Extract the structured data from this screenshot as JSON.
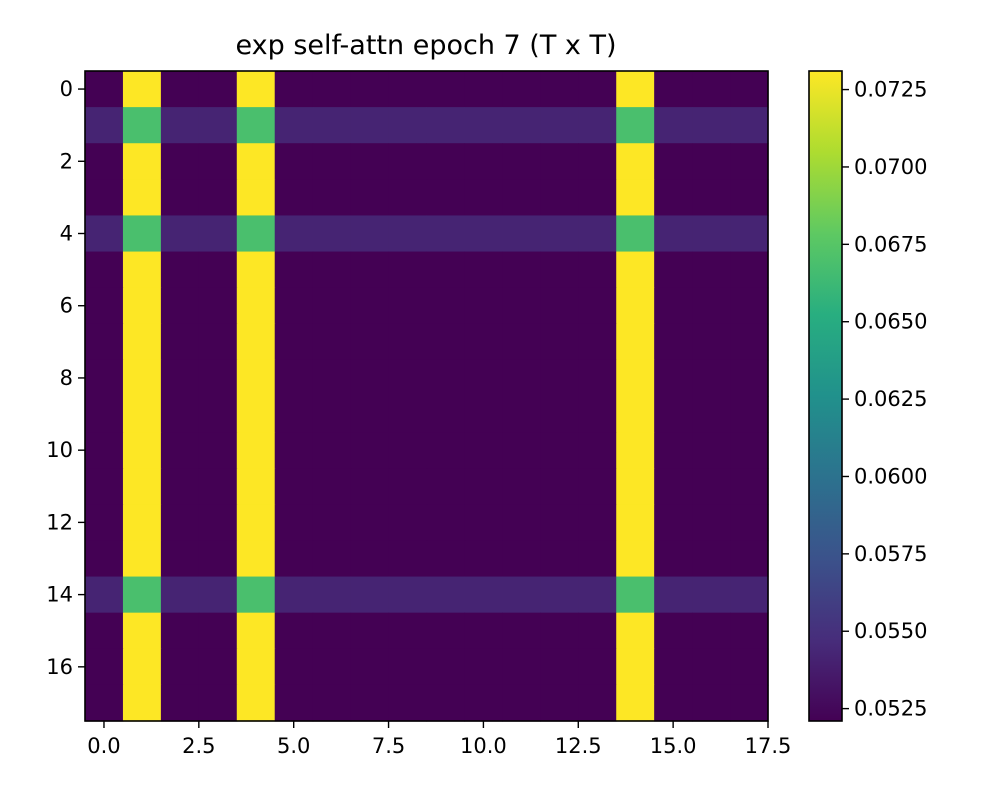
{
  "chart_data": {
    "type": "heatmap",
    "title": "exp self-attn epoch 7 (T x T)",
    "xlabel": "",
    "ylabel": "",
    "size": 18,
    "xlim": [
      -0.5,
      17.5
    ],
    "ylim": [
      17.5,
      -0.5
    ],
    "x_ticks": [
      "0.0",
      "2.5",
      "5.0",
      "7.5",
      "10.0",
      "12.5",
      "15.0",
      "17.5"
    ],
    "x_tick_values": [
      0,
      2.5,
      5,
      7.5,
      10,
      12.5,
      15,
      17.5
    ],
    "y_ticks": [
      "0",
      "2",
      "4",
      "6",
      "8",
      "10",
      "12",
      "14",
      "16"
    ],
    "y_tick_values": [
      0,
      2,
      4,
      6,
      8,
      10,
      12,
      14,
      16
    ],
    "colormap": "viridis",
    "colorbar": {
      "min": 0.0521,
      "max": 0.0731,
      "ticks": [
        "0.0525",
        "0.0550",
        "0.0575",
        "0.0600",
        "0.0625",
        "0.0650",
        "0.0675",
        "0.0700",
        "0.0725"
      ],
      "tick_values": [
        0.0525,
        0.055,
        0.0575,
        0.06,
        0.0625,
        0.065,
        0.0675,
        0.07,
        0.0725
      ]
    },
    "values": [
      [
        0.0521,
        0.0731,
        0.0521,
        0.0521,
        0.0731,
        0.0521,
        0.0521,
        0.0521,
        0.0521,
        0.0521,
        0.0521,
        0.0521,
        0.0521,
        0.0521,
        0.0731,
        0.0521,
        0.0521,
        0.0521
      ],
      [
        0.0542,
        0.0669,
        0.0542,
        0.0542,
        0.0669,
        0.0542,
        0.0542,
        0.0542,
        0.0542,
        0.0542,
        0.0542,
        0.0542,
        0.0542,
        0.0542,
        0.0669,
        0.0542,
        0.0542,
        0.0542
      ],
      [
        0.0521,
        0.0731,
        0.0521,
        0.0521,
        0.0731,
        0.0521,
        0.0521,
        0.0521,
        0.0521,
        0.0521,
        0.0521,
        0.0521,
        0.0521,
        0.0521,
        0.0731,
        0.0521,
        0.0521,
        0.0521
      ],
      [
        0.0521,
        0.0731,
        0.0521,
        0.0521,
        0.0731,
        0.0521,
        0.0521,
        0.0521,
        0.0521,
        0.0521,
        0.0521,
        0.0521,
        0.0521,
        0.0521,
        0.0731,
        0.0521,
        0.0521,
        0.0521
      ],
      [
        0.0542,
        0.0669,
        0.0542,
        0.0542,
        0.0669,
        0.0542,
        0.0542,
        0.0542,
        0.0542,
        0.0542,
        0.0542,
        0.0542,
        0.0542,
        0.0542,
        0.0669,
        0.0542,
        0.0542,
        0.0542
      ],
      [
        0.0521,
        0.0731,
        0.0521,
        0.0521,
        0.0731,
        0.0521,
        0.0521,
        0.0521,
        0.0521,
        0.0521,
        0.0521,
        0.0521,
        0.0521,
        0.0521,
        0.0731,
        0.0521,
        0.0521,
        0.0521
      ],
      [
        0.0521,
        0.0731,
        0.0521,
        0.0521,
        0.0731,
        0.0521,
        0.0521,
        0.0521,
        0.0521,
        0.0521,
        0.0521,
        0.0521,
        0.0521,
        0.0521,
        0.0731,
        0.0521,
        0.0521,
        0.0521
      ],
      [
        0.0521,
        0.0731,
        0.0521,
        0.0521,
        0.0731,
        0.0521,
        0.0521,
        0.0521,
        0.0521,
        0.0521,
        0.0521,
        0.0521,
        0.0521,
        0.0521,
        0.0731,
        0.0521,
        0.0521,
        0.0521
      ],
      [
        0.0521,
        0.0731,
        0.0521,
        0.0521,
        0.0731,
        0.0521,
        0.0521,
        0.0521,
        0.0521,
        0.0521,
        0.0521,
        0.0521,
        0.0521,
        0.0521,
        0.0731,
        0.0521,
        0.0521,
        0.0521
      ],
      [
        0.0521,
        0.0731,
        0.0521,
        0.0521,
        0.0731,
        0.0521,
        0.0521,
        0.0521,
        0.0521,
        0.0521,
        0.0521,
        0.0521,
        0.0521,
        0.0521,
        0.0731,
        0.0521,
        0.0521,
        0.0521
      ],
      [
        0.0521,
        0.0731,
        0.0521,
        0.0521,
        0.0731,
        0.0521,
        0.0521,
        0.0521,
        0.0521,
        0.0521,
        0.0521,
        0.0521,
        0.0521,
        0.0521,
        0.0731,
        0.0521,
        0.0521,
        0.0521
      ],
      [
        0.0521,
        0.0731,
        0.0521,
        0.0521,
        0.0731,
        0.0521,
        0.0521,
        0.0521,
        0.0521,
        0.0521,
        0.0521,
        0.0521,
        0.0521,
        0.0521,
        0.0731,
        0.0521,
        0.0521,
        0.0521
      ],
      [
        0.0521,
        0.0731,
        0.0521,
        0.0521,
        0.0731,
        0.0521,
        0.0521,
        0.0521,
        0.0521,
        0.0521,
        0.0521,
        0.0521,
        0.0521,
        0.0521,
        0.0731,
        0.0521,
        0.0521,
        0.0521
      ],
      [
        0.0521,
        0.0731,
        0.0521,
        0.0521,
        0.0731,
        0.0521,
        0.0521,
        0.0521,
        0.0521,
        0.0521,
        0.0521,
        0.0521,
        0.0521,
        0.0521,
        0.0731,
        0.0521,
        0.0521,
        0.0521
      ],
      [
        0.0542,
        0.0669,
        0.0542,
        0.0542,
        0.0669,
        0.0542,
        0.0542,
        0.0542,
        0.0542,
        0.0542,
        0.0542,
        0.0542,
        0.0542,
        0.0542,
        0.0669,
        0.0542,
        0.0542,
        0.0542
      ],
      [
        0.0521,
        0.0731,
        0.0521,
        0.0521,
        0.0731,
        0.0521,
        0.0521,
        0.0521,
        0.0521,
        0.0521,
        0.0521,
        0.0521,
        0.0521,
        0.0521,
        0.0731,
        0.0521,
        0.0521,
        0.0521
      ],
      [
        0.0521,
        0.0731,
        0.0521,
        0.0521,
        0.0731,
        0.0521,
        0.0521,
        0.0521,
        0.0521,
        0.0521,
        0.0521,
        0.0521,
        0.0521,
        0.0521,
        0.0731,
        0.0521,
        0.0521,
        0.0521
      ],
      [
        0.0521,
        0.0731,
        0.0521,
        0.0521,
        0.0731,
        0.0521,
        0.0521,
        0.0521,
        0.0521,
        0.0521,
        0.0521,
        0.0521,
        0.0521,
        0.0521,
        0.0731,
        0.0521,
        0.0521,
        0.0521
      ]
    ]
  }
}
